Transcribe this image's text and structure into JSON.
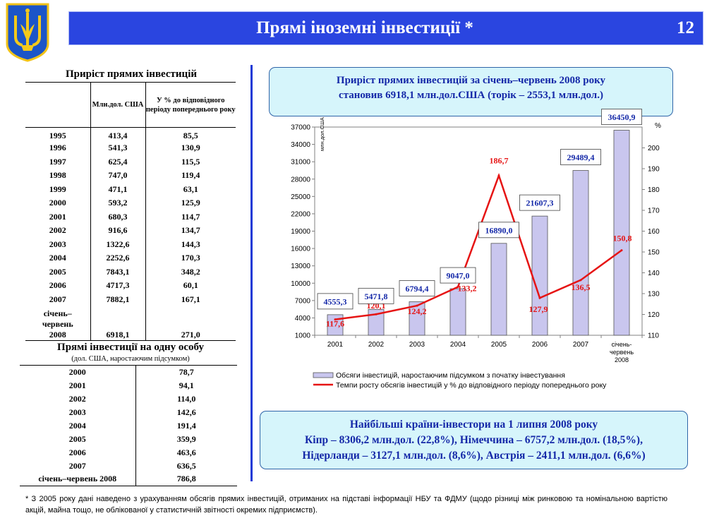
{
  "header": {
    "title": "Прямі іноземні інвестиції *",
    "page_number": "12"
  },
  "table1": {
    "title": "Приріст прямих інвестицій",
    "col_amount": "Млн.дол. США",
    "col_percent": "У % до відповідного періоду попереднього року",
    "rows": [
      {
        "year": "1995",
        "amount": "413,4",
        "percent": "85,5"
      },
      {
        "year": "1996",
        "amount": "541,3",
        "percent": "130,9"
      },
      {
        "year": "1997",
        "amount": "625,4",
        "percent": "115,5"
      },
      {
        "year": "1998",
        "amount": "747,0",
        "percent": "119,4"
      },
      {
        "year": "1999",
        "amount": "471,1",
        "percent": "63,1"
      },
      {
        "year": "2000",
        "amount": "593,2",
        "percent": "125,9"
      },
      {
        "year": "2001",
        "amount": "680,3",
        "percent": "114,7"
      },
      {
        "year": "2002",
        "amount": "916,6",
        "percent": "134,7"
      },
      {
        "year": "2003",
        "amount": "1322,6",
        "percent": "144,3"
      },
      {
        "year": "2004",
        "amount": "2252,6",
        "percent": "170,3"
      },
      {
        "year": "2005",
        "amount": "7843,1",
        "percent": "348,2"
      },
      {
        "year": "2006",
        "amount": "4717,3",
        "percent": "60,1"
      },
      {
        "year": "2007",
        "amount": "7882,1",
        "percent": "167,1"
      }
    ],
    "last_row": {
      "year_line1": "січень–",
      "year_line2": "червень",
      "year_line3": "2008",
      "amount": "6918,1",
      "percent": "271,0"
    }
  },
  "table2": {
    "title": "Прямі інвестиції на одну особу",
    "subtitle": "(дол. США, наростаючим підсумком)",
    "rows": [
      {
        "year": "2000",
        "value": "78,7"
      },
      {
        "year": "2001",
        "value": "94,1"
      },
      {
        "year": "2002",
        "value": "114,0"
      },
      {
        "year": "2003",
        "value": "142,6"
      },
      {
        "year": "2004",
        "value": "191,4"
      },
      {
        "year": "2005",
        "value": "359,9"
      },
      {
        "year": "2006",
        "value": "463,6"
      },
      {
        "year": "2007",
        "value": "636,5"
      },
      {
        "year": "січень–червень 2008",
        "value": "786,8"
      }
    ]
  },
  "box_top": {
    "line1": "Приріст прямих інвестицій за січень–червень 2008 року",
    "line2": "становив 6918,1 млн.дол.США (торік – 2553,1 млн.дол.)"
  },
  "box_bottom": {
    "line1": "Найбільші країни-інвестори на 1 липня 2008 року",
    "line2": "Кіпр – 8306,2 млн.дол. (22,8%), Німеччина – 6757,2 млн.дол. (18,5%),",
    "line3": "Нідерланди – 3127,1 млн.дол. (8,6%), Австрія – 2411,1 млн.дол. (6,6%)"
  },
  "footnote": "* З 2005 року дані наведено з урахуванням обсягів прямих інвестицій, отриманих на підставі інформації НБУ та ФДМУ (щодо різниці між ринковою та номінальною вартістю акцій, майна тощо, не облікованої у статистичній звітності окремих підприємств).",
  "colors": {
    "header_bg": "#2a45e0",
    "bar_fill": "#c9c6ee",
    "line": "#e61414",
    "label_blue": "#1428a8",
    "label_red": "#e61414"
  },
  "chart_data": {
    "type": "bar",
    "categories": [
      "2001",
      "2002",
      "2003",
      "2004",
      "2005",
      "2006",
      "2007",
      "січень-червень 2008"
    ],
    "category_lines": [
      [
        "2001"
      ],
      [
        "2002"
      ],
      [
        "2003"
      ],
      [
        "2004"
      ],
      [
        "2005"
      ],
      [
        "2006"
      ],
      [
        "2007"
      ],
      [
        "січень-",
        "червень",
        "2008"
      ]
    ],
    "y_label": "млн.дол.США",
    "y2_label": "%",
    "ylim": [
      1000,
      37000
    ],
    "y_ticks": [
      1000,
      4000,
      7000,
      10000,
      13000,
      16000,
      19000,
      22000,
      25000,
      28000,
      31000,
      34000,
      37000
    ],
    "y2lim": [
      110,
      210
    ],
    "y2_ticks": [
      110,
      120,
      130,
      140,
      150,
      160,
      170,
      180,
      190,
      200
    ],
    "series": [
      {
        "name": "Обсяги інвестицій, наростаючим підсумком з початку інвестування",
        "type": "bar",
        "axis": "left",
        "values": [
          4555.3,
          5471.8,
          6794.4,
          9047.0,
          16890.0,
          21607.3,
          29489.4,
          36450.9
        ],
        "labels": [
          "4555,3",
          "5471,8",
          "6794,4",
          "9047,0",
          "16890,0",
          "21607,3",
          "29489,4",
          "36450,9"
        ]
      },
      {
        "name": "Темпи росту обсягів інвестицій у % до відповідного періоду попереднього року",
        "type": "line",
        "axis": "right",
        "values": [
          117.6,
          120.1,
          124.2,
          133.2,
          186.7,
          127.9,
          136.5,
          150.8
        ],
        "labels": [
          "117,6",
          "120,1",
          "124,2",
          "133,2",
          "186,7",
          "127,9",
          "136,5",
          "150,8"
        ]
      }
    ],
    "legend_position": "bottom"
  }
}
